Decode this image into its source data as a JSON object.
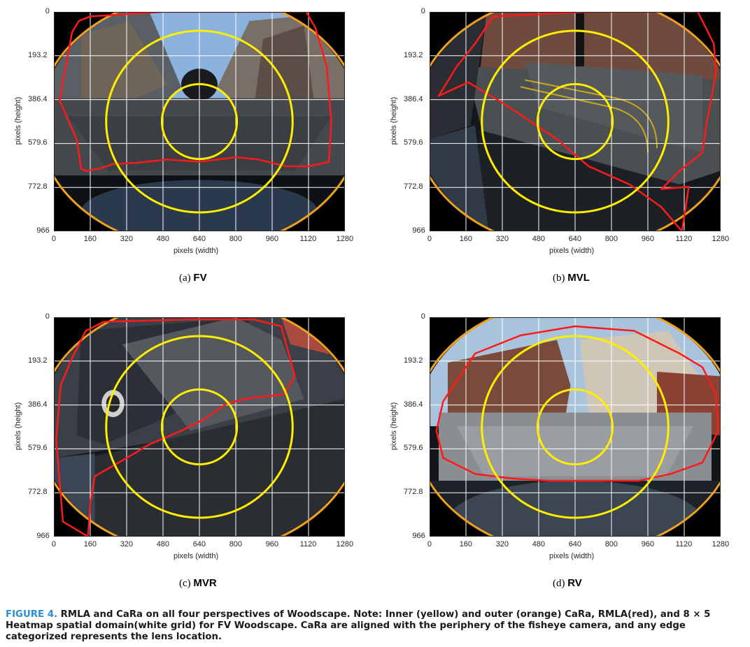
{
  "panels": [
    {
      "id": "a",
      "letter": "(a)",
      "name": "FV",
      "variant": "fv"
    },
    {
      "id": "b",
      "letter": "(b)",
      "name": "MVL",
      "variant": "mvl"
    },
    {
      "id": "c",
      "letter": "(c)",
      "name": "MVR",
      "variant": "mvr"
    },
    {
      "id": "d",
      "letter": "(d)",
      "name": "RV",
      "variant": "rv"
    }
  ],
  "axes": {
    "xlabel": "pixels (width)",
    "ylabel": "pixels (height)",
    "xticks": [
      "0",
      "160",
      "320",
      "480",
      "640",
      "800",
      "960",
      "1120",
      "1280"
    ],
    "yticks": [
      "0",
      "193.2",
      "386.4",
      "579.6",
      "772.8",
      "966"
    ]
  },
  "caption": {
    "figure_label": "FIGURE 4.",
    "text": "RMLA and CaRa on all four perspectives of Woodscape. Note: Inner (yellow) and outer (orange) CaRa, RMLA(red), and 8 × 5 Heatmap spatial domain(white grid) for FV Woodscape. CaRa are aligned with the periphery of the fisheye camera, and any edge categorized represents the lens location."
  },
  "colors": {
    "inner_cara": "#ffee00",
    "outer_cara": "#f0a020",
    "rmla": "#ff1a1a",
    "grid": "#ffffff"
  }
}
